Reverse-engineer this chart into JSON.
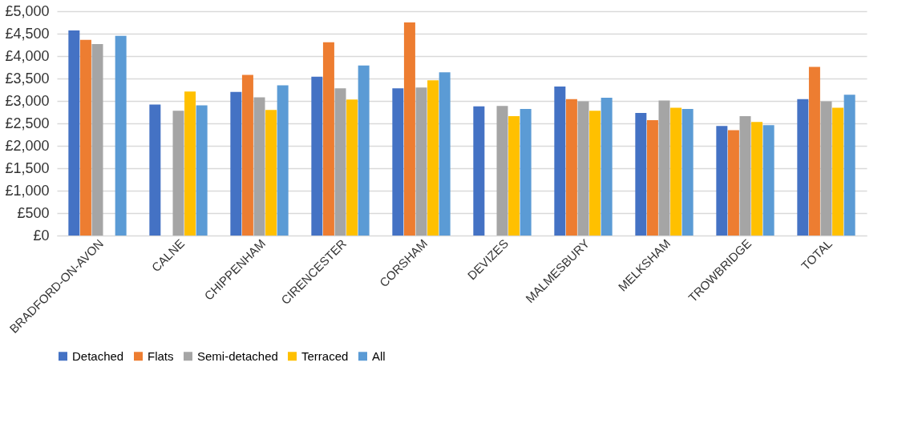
{
  "chart_data": {
    "type": "bar",
    "categories": [
      "BRADFORD-ON-AVON",
      "CALNE",
      "CHIPPENHAM",
      "CIRENCESTER",
      "CORSHAM",
      "DEVIZES",
      "MALMESBURY",
      "MELKSHAM",
      "TROWBRIDGE",
      "TOTAL"
    ],
    "series": [
      {
        "name": "Detached",
        "color": "#4472c4",
        "values": [
          4570,
          2920,
          3200,
          3540,
          3280,
          2880,
          3320,
          2730,
          2440,
          3040
        ]
      },
      {
        "name": "Flats",
        "color": "#ed7d31",
        "values": [
          4360,
          null,
          3580,
          4310,
          4750,
          null,
          3040,
          2570,
          2350,
          3760
        ]
      },
      {
        "name": "Semi-detached",
        "color": "#a5a5a5",
        "values": [
          4270,
          2780,
          3080,
          3280,
          3300,
          2890,
          2990,
          3010,
          2660,
          2990
        ]
      },
      {
        "name": "Terraced",
        "color": "#ffc000",
        "values": [
          null,
          3210,
          2800,
          3030,
          3460,
          2660,
          2780,
          2850,
          2530,
          2850
        ]
      },
      {
        "name": "All",
        "color": "#5b9bd5",
        "values": [
          4450,
          2900,
          3350,
          3790,
          3640,
          2820,
          3070,
          2820,
          2460,
          3140
        ]
      }
    ],
    "ylim": [
      0,
      5000
    ],
    "yticks": [
      {
        "value": 0,
        "label": "£0"
      },
      {
        "value": 500,
        "label": "£500"
      },
      {
        "value": 1000,
        "label": "£1,000"
      },
      {
        "value": 1500,
        "label": "£1,500"
      },
      {
        "value": 2000,
        "label": "£2,000"
      },
      {
        "value": 2500,
        "label": "£2,500"
      },
      {
        "value": 3000,
        "label": "£3,000"
      },
      {
        "value": 3500,
        "label": "£3,500"
      },
      {
        "value": 4000,
        "label": "£4,000"
      },
      {
        "value": 4500,
        "label": "£4,500"
      },
      {
        "value": 5000,
        "label": "£5,000"
      }
    ],
    "grid": "y",
    "legend": "bottom"
  }
}
